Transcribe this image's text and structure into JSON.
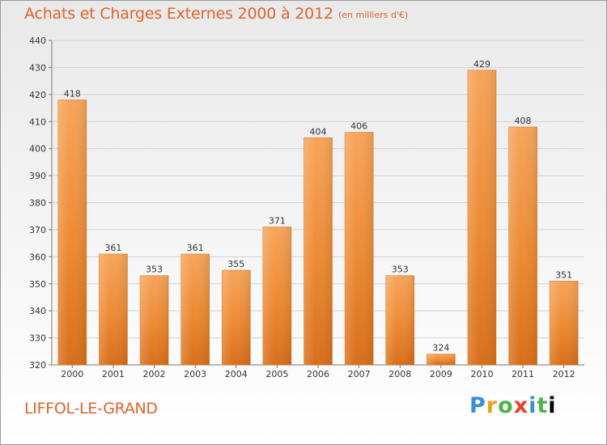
{
  "header": {
    "title": "Achats et Charges Externes 2000 à 2012",
    "subtitle": "(en milliers d'€)"
  },
  "footer": {
    "place": "LIFFOL-LE-GRAND",
    "logo_letters": [
      "P",
      "r",
      "o",
      "x",
      "i",
      "t",
      "i"
    ]
  },
  "chart_data": {
    "type": "bar",
    "title": "Achats et Charges Externes 2000 à 2012",
    "subtitle": "(en milliers d'€)",
    "xlabel": "",
    "ylabel": "",
    "categories": [
      "2000",
      "2001",
      "2002",
      "2003",
      "2004",
      "2005",
      "2006",
      "2007",
      "2008",
      "2009",
      "2010",
      "2011",
      "2012"
    ],
    "values": [
      418,
      361,
      353,
      361,
      355,
      371,
      404,
      406,
      353,
      324,
      429,
      408,
      351
    ],
    "ylim": [
      320,
      440
    ],
    "yticks": [
      320,
      330,
      340,
      350,
      360,
      370,
      380,
      390,
      400,
      410,
      420,
      430,
      440
    ],
    "grid": true,
    "legend": "none",
    "bar_color": "#f0913c"
  }
}
